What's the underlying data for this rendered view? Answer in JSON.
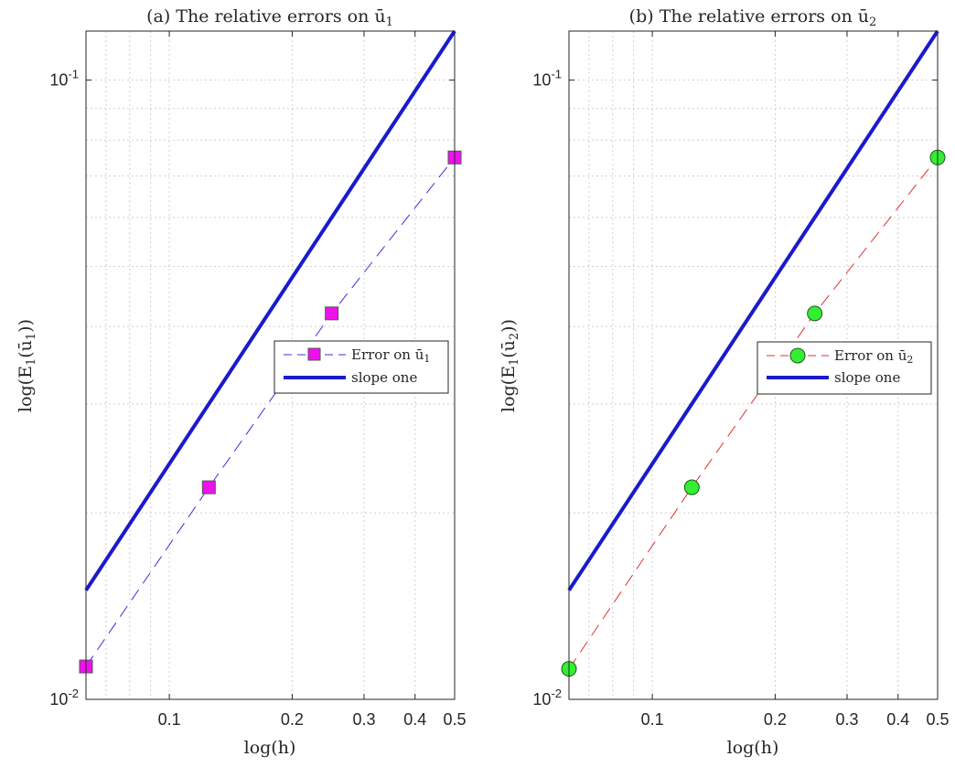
{
  "chart_data": [
    {
      "type": "line",
      "title_main": "(a) The relative errors on ",
      "title_sym": "ū",
      "title_sub": "1",
      "xlabel": "log(h)",
      "ylabel_pre": "log(E",
      "ylabel_sub": "1",
      "ylabel_mid": "(ū",
      "ylabel_sub2": "1",
      "ylabel_post": "))",
      "xscale": "log",
      "yscale": "log",
      "xlim": [
        0.0625,
        0.5
      ],
      "ylim": [
        0.01,
        0.12
      ],
      "xtick_labels": [
        "0.1",
        "0.2",
        "0.3",
        "0.4",
        "0.5"
      ],
      "xtick_values": [
        0.1,
        0.2,
        0.3,
        0.4,
        0.5
      ],
      "ytick_labels": [
        {
          "base": "10",
          "exp": "-2"
        },
        {
          "base": "10",
          "exp": "-1"
        }
      ],
      "ytick_values": [
        0.01,
        0.1
      ],
      "grid": true,
      "minor_grid": true,
      "legend_position": "center-right",
      "series": [
        {
          "name_pre": "Error on ",
          "name_sym": "ū",
          "name_sub": "1",
          "color": "#3333dd",
          "line": "dashed",
          "marker": "square",
          "marker_face": "#ee11ee",
          "x": [
            0.0625,
            0.125,
            0.25,
            0.5
          ],
          "y": [
            0.0113,
            0.022,
            0.042,
            0.075
          ]
        },
        {
          "name": "slope one",
          "color": "#1a1acc",
          "line": "solid",
          "x": [
            0.0625,
            0.5
          ],
          "y": [
            0.015,
            0.12
          ]
        }
      ]
    },
    {
      "type": "line",
      "title_main": "(b) The relative errors on ",
      "title_sym": "ū",
      "title_sub": "2",
      "xlabel": "log(h)",
      "ylabel_pre": "log(E",
      "ylabel_sub": "1",
      "ylabel_mid": "(ū",
      "ylabel_sub2": "2",
      "ylabel_post": "))",
      "xscale": "log",
      "yscale": "log",
      "xlim": [
        0.0625,
        0.5
      ],
      "ylim": [
        0.01,
        0.12
      ],
      "xtick_labels": [
        "0.1",
        "0.2",
        "0.3",
        "0.4",
        "0.5"
      ],
      "xtick_values": [
        0.1,
        0.2,
        0.3,
        0.4,
        0.5
      ],
      "ytick_labels": [
        {
          "base": "10",
          "exp": "-2"
        },
        {
          "base": "10",
          "exp": "-1"
        }
      ],
      "ytick_values": [
        0.01,
        0.1
      ],
      "grid": true,
      "minor_grid": true,
      "legend_position": "center-right",
      "series": [
        {
          "name_pre": "Error on ",
          "name_sym": "ū",
          "name_sub": "2",
          "color": "#dd3333",
          "line": "dashed",
          "marker": "circle",
          "marker_face": "#33ee33",
          "x": [
            0.0625,
            0.125,
            0.25,
            0.5
          ],
          "y": [
            0.0112,
            0.022,
            0.042,
            0.075
          ]
        },
        {
          "name": "slope one",
          "color": "#1a1acc",
          "line": "solid",
          "x": [
            0.0625,
            0.5
          ],
          "y": [
            0.015,
            0.12
          ]
        }
      ]
    }
  ]
}
